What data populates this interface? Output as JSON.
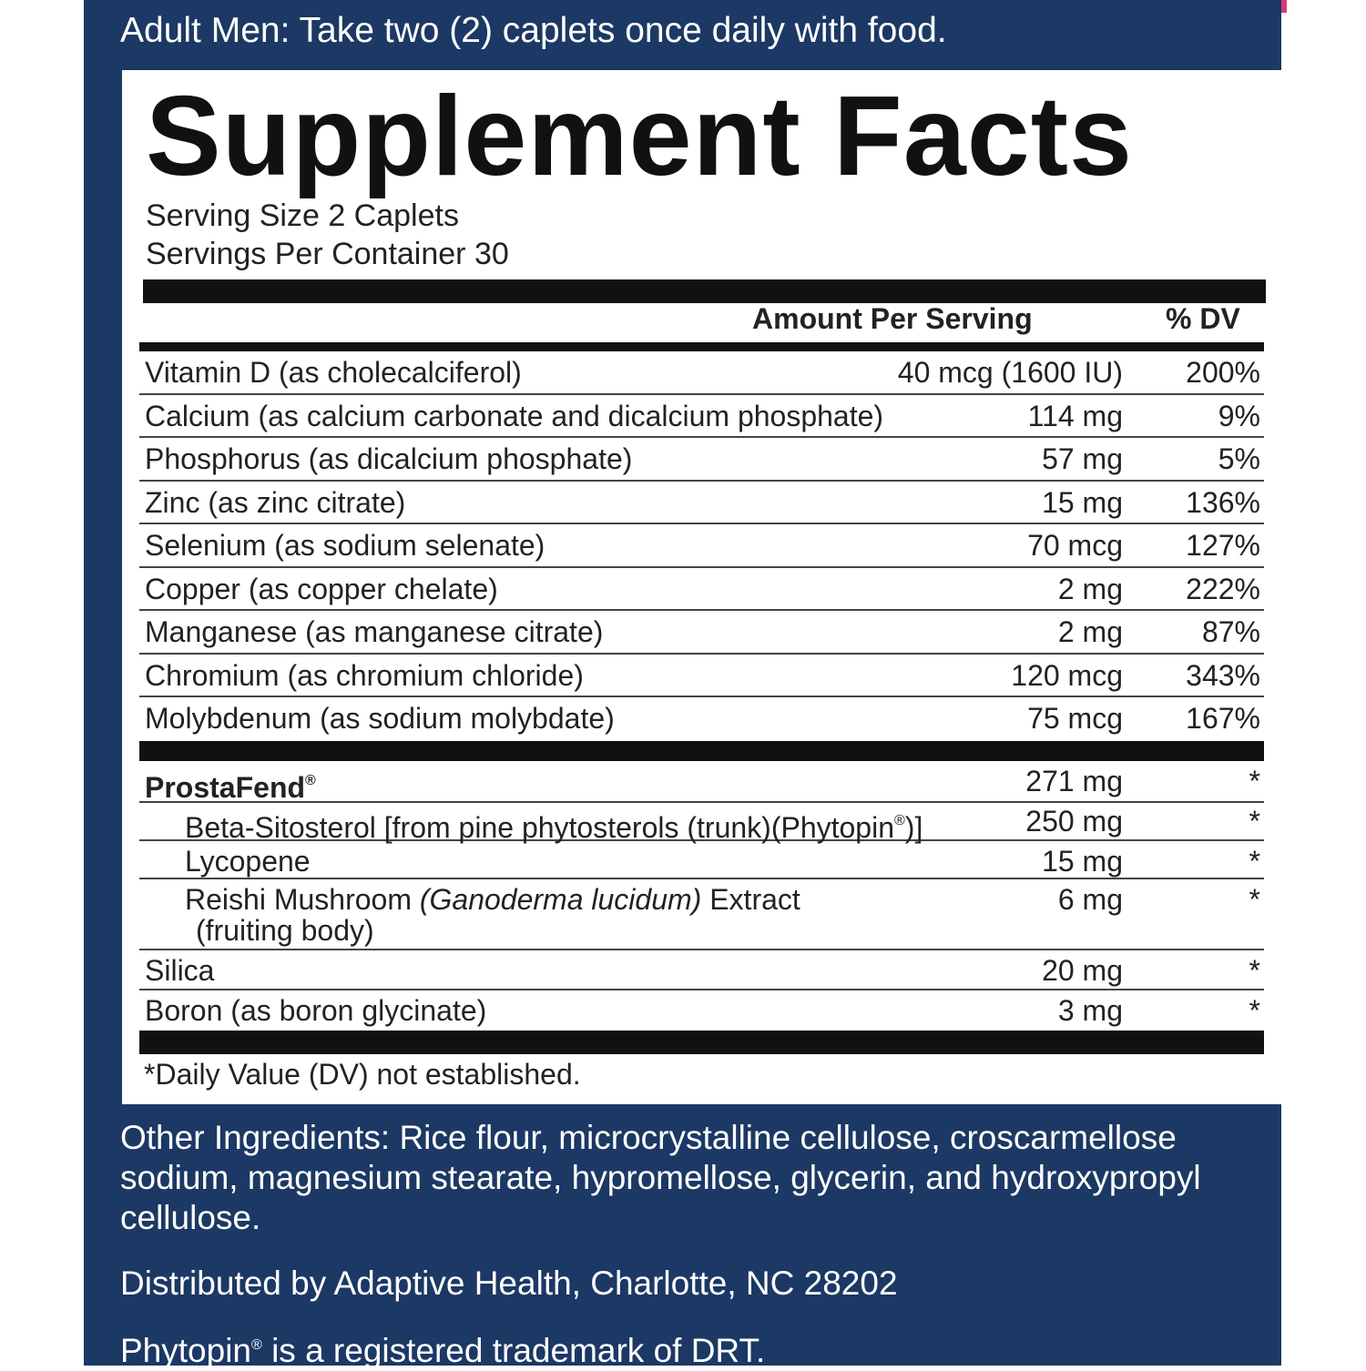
{
  "directions": "Adult Men: Take two (2) caplets once daily with food.",
  "title": "Supplement Facts",
  "serving_size": "Serving Size 2 Caplets",
  "servings_per_container": "Servings Per Container 30",
  "headers": {
    "amount": "Amount Per Serving",
    "dv": "% DV"
  },
  "nutrients": [
    {
      "name": "Vitamin D (as cholecalciferol)",
      "amount": "40 mcg (1600 IU)",
      "dv": "200%"
    },
    {
      "name": "Calcium (as calcium carbonate and dicalcium phosphate)",
      "amount": "114 mg",
      "dv": "9%"
    },
    {
      "name": "Phosphorus (as dicalcium phosphate)",
      "amount": "57 mg",
      "dv": "5%"
    },
    {
      "name": "Zinc (as zinc citrate)",
      "amount": "15 mg",
      "dv": "136%"
    },
    {
      "name": "Selenium (as sodium selenate)",
      "amount": "70 mcg",
      "dv": "127%"
    },
    {
      "name": "Copper (as copper chelate)",
      "amount": "2 mg",
      "dv": "222%"
    },
    {
      "name": "Manganese (as manganese citrate)",
      "amount": "2 mg",
      "dv": "87%"
    },
    {
      "name": "Chromium (as chromium chloride)",
      "amount": "120 mcg",
      "dv": "343%"
    },
    {
      "name": "Molybdenum (as sodium molybdate)",
      "amount": "75 mcg",
      "dv": "167%"
    }
  ],
  "blend": {
    "name": "ProstaFend",
    "mark": "®",
    "amount": "271 mg",
    "dv": "*",
    "items": [
      {
        "name": "Beta-Sitosterol [from pine phytosterols (trunk)(Phytopin",
        "mark": "®",
        "close": ")]",
        "amount": "250 mg",
        "dv": "*"
      },
      {
        "name": "Lycopene",
        "amount": "15 mg",
        "dv": "*"
      },
      {
        "name_pre": "Reishi Mushroom ",
        "name_italic": "(Ganoderma lucidum)",
        "name_post": " Extract",
        "name_line2": "(fruiting body)",
        "amount": "6 mg",
        "dv": "*"
      }
    ]
  },
  "others": [
    {
      "name": "Silica",
      "amount": "20 mg",
      "dv": "*"
    },
    {
      "name": "Boron (as boron glycinate)",
      "amount": "3 mg",
      "dv": "*"
    }
  ],
  "footnote": "*Daily Value (DV) not established.",
  "other_ingredients": "Other Ingredients: Rice flour, microcrystalline cellulose, croscarmellose sodium, magnesium stearate, hypromellose, glycerin, and hydroxypropyl cellulose.",
  "distributor": "Distributed by Adaptive Health, Charlotte, NC 28202",
  "trademark_pre": "Phytopin",
  "trademark_mark": "®",
  "trademark_post": " is a registered trademark of DRT.",
  "colors": {
    "panel": "#1c3864",
    "accent": "#d63a78",
    "rule": "#111111"
  }
}
